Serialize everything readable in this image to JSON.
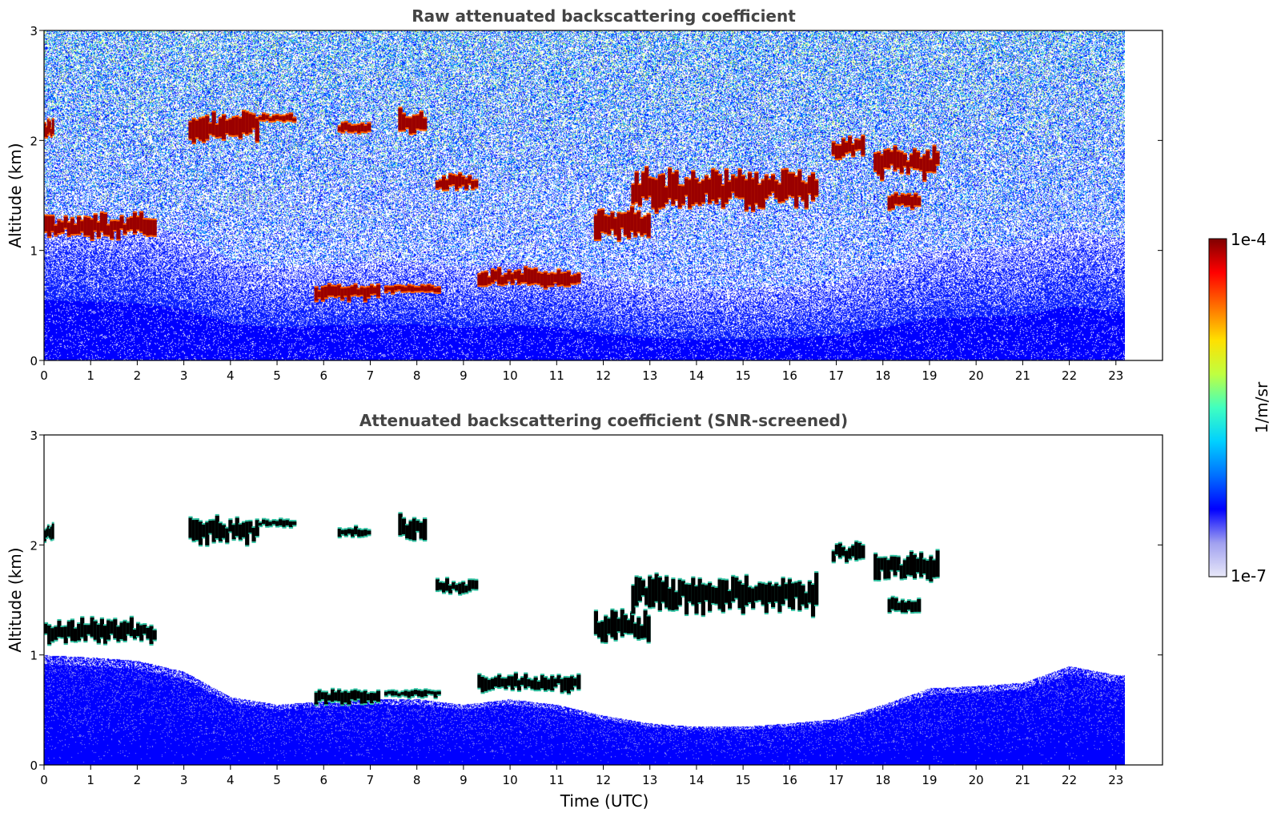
{
  "chart_data": [
    {
      "type": "heatmap",
      "title": "Raw attenuated backscattering coefficient",
      "ylabel": "Altitude (km)",
      "xlabel": "",
      "xlim": [
        0,
        24
      ],
      "ylim": [
        0,
        3
      ],
      "data_end_x": 23.2,
      "xticks": [
        "0",
        "1",
        "2",
        "3",
        "4",
        "5",
        "6",
        "7",
        "8",
        "9",
        "10",
        "11",
        "12",
        "13",
        "14",
        "15",
        "16",
        "17",
        "18",
        "19",
        "20",
        "21",
        "22",
        "23"
      ],
      "yticks": [
        "0",
        "1",
        "2",
        "3"
      ],
      "background": "noisy",
      "cloud_layers": [
        {
          "x_start": 0.0,
          "x_end": 0.2,
          "alt": 2.1,
          "thick": 0.12
        },
        {
          "x_start": 0.0,
          "x_end": 2.4,
          "alt": 1.22,
          "thick": 0.16
        },
        {
          "x_start": 3.1,
          "x_end": 4.6,
          "alt": 2.13,
          "thick": 0.18
        },
        {
          "x_start": 4.6,
          "x_end": 5.4,
          "alt": 2.2,
          "thick": 0.05
        },
        {
          "x_start": 6.3,
          "x_end": 7.0,
          "alt": 2.12,
          "thick": 0.07
        },
        {
          "x_start": 7.6,
          "x_end": 8.2,
          "alt": 2.15,
          "thick": 0.17
        },
        {
          "x_start": 8.4,
          "x_end": 9.3,
          "alt": 1.62,
          "thick": 0.1
        },
        {
          "x_start": 5.8,
          "x_end": 7.2,
          "alt": 0.62,
          "thick": 0.1
        },
        {
          "x_start": 7.3,
          "x_end": 8.5,
          "alt": 0.65,
          "thick": 0.05
        },
        {
          "x_start": 9.3,
          "x_end": 11.5,
          "alt": 0.75,
          "thick": 0.12
        },
        {
          "x_start": 11.8,
          "x_end": 13.0,
          "alt": 1.25,
          "thick": 0.22
        },
        {
          "x_start": 12.6,
          "x_end": 16.6,
          "alt": 1.55,
          "thick": 0.25
        },
        {
          "x_start": 16.9,
          "x_end": 17.6,
          "alt": 1.93,
          "thick": 0.15
        },
        {
          "x_start": 17.8,
          "x_end": 19.2,
          "alt": 1.8,
          "thick": 0.2
        },
        {
          "x_start": 18.1,
          "x_end": 18.8,
          "alt": 1.45,
          "thick": 0.1
        }
      ],
      "boundary_layer": [
        [
          0,
          1.0
        ],
        [
          1,
          0.98
        ],
        [
          2,
          0.95
        ],
        [
          3,
          0.85
        ],
        [
          4,
          0.62
        ],
        [
          5,
          0.55
        ],
        [
          6,
          0.58
        ],
        [
          7,
          0.6
        ],
        [
          8,
          0.6
        ],
        [
          9,
          0.55
        ],
        [
          10,
          0.6
        ],
        [
          11,
          0.55
        ],
        [
          12,
          0.45
        ],
        [
          13,
          0.38
        ],
        [
          14,
          0.35
        ],
        [
          15,
          0.35
        ],
        [
          16,
          0.38
        ],
        [
          17,
          0.42
        ],
        [
          18,
          0.55
        ],
        [
          19,
          0.7
        ],
        [
          20,
          0.72
        ],
        [
          21,
          0.75
        ],
        [
          22,
          0.9
        ],
        [
          23,
          0.82
        ]
      ]
    },
    {
      "type": "heatmap",
      "title": "Attenuated backscattering coefficient (SNR-screened)",
      "ylabel": "Altitude (km)",
      "xlabel": "Time (UTC)",
      "xlim": [
        0,
        24
      ],
      "ylim": [
        0,
        3
      ],
      "data_end_x": 23.2,
      "xticks": [
        "0",
        "1",
        "2",
        "3",
        "4",
        "5",
        "6",
        "7",
        "8",
        "9",
        "10",
        "11",
        "12",
        "13",
        "14",
        "15",
        "16",
        "17",
        "18",
        "19",
        "20",
        "21",
        "22",
        "23"
      ],
      "yticks": [
        "0",
        "1",
        "2",
        "3"
      ],
      "background": "screened",
      "cloud_layers": [
        {
          "x_start": 0.0,
          "x_end": 0.2,
          "alt": 2.1,
          "thick": 0.12
        },
        {
          "x_start": 0.0,
          "x_end": 2.4,
          "alt": 1.22,
          "thick": 0.16
        },
        {
          "x_start": 3.1,
          "x_end": 4.6,
          "alt": 2.13,
          "thick": 0.18
        },
        {
          "x_start": 4.6,
          "x_end": 5.4,
          "alt": 2.2,
          "thick": 0.05
        },
        {
          "x_start": 6.3,
          "x_end": 7.0,
          "alt": 2.12,
          "thick": 0.07
        },
        {
          "x_start": 7.6,
          "x_end": 8.2,
          "alt": 2.15,
          "thick": 0.17
        },
        {
          "x_start": 8.4,
          "x_end": 9.3,
          "alt": 1.62,
          "thick": 0.1
        },
        {
          "x_start": 5.8,
          "x_end": 7.2,
          "alt": 0.62,
          "thick": 0.1
        },
        {
          "x_start": 7.3,
          "x_end": 8.5,
          "alt": 0.65,
          "thick": 0.05
        },
        {
          "x_start": 9.3,
          "x_end": 11.5,
          "alt": 0.75,
          "thick": 0.12
        },
        {
          "x_start": 11.8,
          "x_end": 13.0,
          "alt": 1.25,
          "thick": 0.22
        },
        {
          "x_start": 12.6,
          "x_end": 16.6,
          "alt": 1.55,
          "thick": 0.25
        },
        {
          "x_start": 16.9,
          "x_end": 17.6,
          "alt": 1.93,
          "thick": 0.15
        },
        {
          "x_start": 17.8,
          "x_end": 19.2,
          "alt": 1.8,
          "thick": 0.2
        },
        {
          "x_start": 18.1,
          "x_end": 18.8,
          "alt": 1.45,
          "thick": 0.1
        }
      ],
      "boundary_layer": [
        [
          0,
          1.0
        ],
        [
          1,
          0.98
        ],
        [
          2,
          0.95
        ],
        [
          3,
          0.85
        ],
        [
          4,
          0.62
        ],
        [
          5,
          0.55
        ],
        [
          6,
          0.58
        ],
        [
          7,
          0.6
        ],
        [
          8,
          0.6
        ],
        [
          9,
          0.55
        ],
        [
          10,
          0.6
        ],
        [
          11,
          0.55
        ],
        [
          12,
          0.45
        ],
        [
          13,
          0.38
        ],
        [
          14,
          0.35
        ],
        [
          15,
          0.35
        ],
        [
          16,
          0.38
        ],
        [
          17,
          0.42
        ],
        [
          18,
          0.55
        ],
        [
          19,
          0.7
        ],
        [
          20,
          0.72
        ],
        [
          21,
          0.75
        ],
        [
          22,
          0.9
        ],
        [
          23,
          0.82
        ]
      ]
    }
  ],
  "colorbar": {
    "label": "1/m/sr",
    "max_label": "1e-4",
    "min_label": "1e-7",
    "scale": "log",
    "colors": [
      "#e8e8f8",
      "#a0a0f0",
      "#0000ff",
      "#0070ff",
      "#00d0ff",
      "#40ffc0",
      "#c0ff40",
      "#ffe000",
      "#ff7000",
      "#ff0000",
      "#800000"
    ]
  }
}
